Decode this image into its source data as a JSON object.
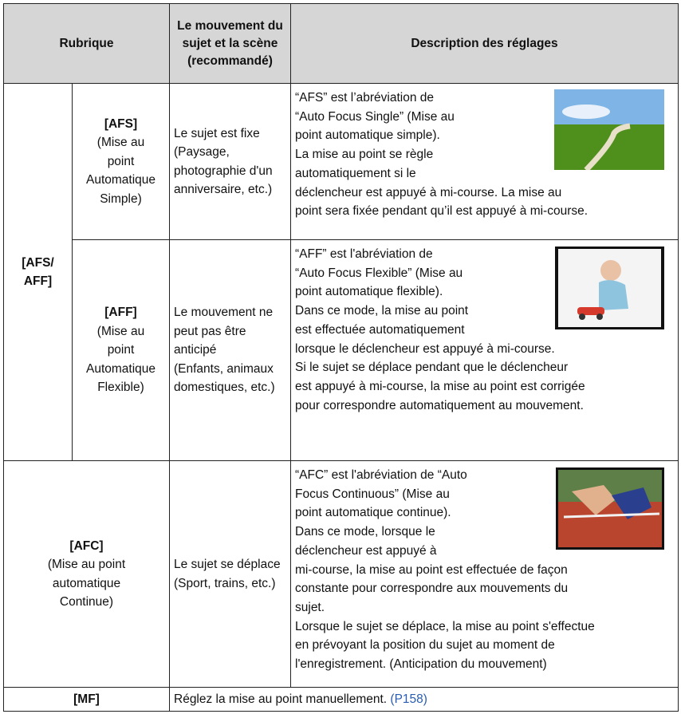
{
  "header": {
    "col1": "Rubrique",
    "col2": [
      "Le mouvement du",
      "sujet et la scène",
      "(recommandé)"
    ],
    "col3": "Description des réglages"
  },
  "group_label": [
    "[AFS/",
    "AFF]"
  ],
  "rows": [
    {
      "item_code": "[AFS]",
      "item": [
        "(Mise au",
        "point",
        "Automatique",
        "Simple)"
      ],
      "subject": [
        "Le sujet est fixe",
        "(Paysage,",
        "photographie d'un",
        "anniversaire, etc.)"
      ],
      "description": [
        "“AFS” est l’abréviation de",
        "“Auto Focus Single” (Mise au",
        "point automatique simple).",
        "La mise au point se règle",
        "automatiquement si le",
        "déclencheur est appuyé à mi-course. La mise au",
        "point sera fixée pendant qu’il est appuyé à mi-course."
      ]
    },
    {
      "item_code": "[AFF]",
      "item": [
        "(Mise au",
        "point",
        "Automatique",
        "Flexible)"
      ],
      "subject": [
        "Le mouvement ne",
        "peut pas être",
        "anticipé",
        "(Enfants, animaux",
        "domestiques, etc.)"
      ],
      "description": [
        "“AFF” est l'abréviation de",
        "“Auto Focus Flexible” (Mise au",
        "point automatique flexible).",
        "Dans ce mode, la mise au point",
        "est effectuée automatiquement",
        "lorsque le déclencheur est appuyé à mi-course.",
        "Si le sujet se déplace pendant que le déclencheur",
        "est appuyé à mi-course, la mise au point est corrigée",
        "pour correspondre automatiquement au mouvement."
      ]
    },
    {
      "item_code": "[AFC]",
      "item": [
        "(Mise au point",
        "automatique",
        "Continue)"
      ],
      "subject": [
        "Le sujet se déplace",
        "(Sport, trains, etc.)"
      ],
      "description": [
        "“AFC” est l'abréviation de “Auto",
        "Focus Continuous” (Mise au",
        "point automatique continue).",
        "Dans ce mode, lorsque le",
        "déclencheur est appuyé à",
        "mi-course, la mise au point est effectuée de façon",
        "constante pour correspondre aux mouvements du",
        "sujet.",
        "Lorsque le sujet se déplace, la mise au point s'effectue",
        "en prévoyant la position du sujet au moment de",
        "l'enregistrement. (Anticipation du mouvement)"
      ]
    },
    {
      "item_code": "[MF]",
      "description_text": "Réglez la mise au point manuellement.",
      "link": "(P158)"
    }
  ]
}
